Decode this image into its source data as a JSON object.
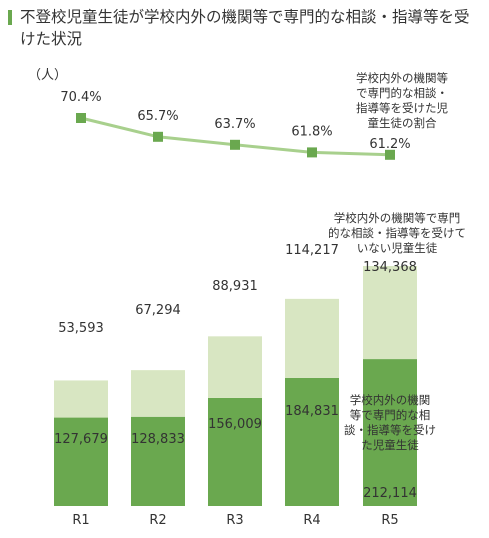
{
  "title": "不登校児童生徒が学校内外の機関等で専門的な相談・指導等を受けた状況",
  "unit": "（人）",
  "colors": {
    "received": "#6aa84f",
    "not_received": "#d8e6c2",
    "rate_line": "#a8d08d",
    "rate_marker": "#6aa84f",
    "accent": "#6aa84f"
  },
  "chart_data": {
    "type": "bar",
    "stacked": true,
    "categories": [
      "R1",
      "R2",
      "R3",
      "R4",
      "R5"
    ],
    "series": [
      {
        "name": "学校内外の機関等で専門的な相談・指導等を受けた児童生徒",
        "values": [
          127679,
          128833,
          156009,
          184831,
          212114
        ]
      },
      {
        "name": "学校内外の機関等で専門的な相談・指導等を受けていない児童生徒",
        "values": [
          53593,
          67294,
          88931,
          114217,
          134368
        ]
      }
    ],
    "line_series": {
      "name": "学校内外の機関等で専門的な相談・指導等を受けた児童生徒の割合",
      "values": [
        70.4,
        65.7,
        63.7,
        61.8,
        61.2
      ],
      "unit": "%"
    },
    "value_labels": {
      "received": [
        "127,679",
        "128,833",
        "156,009",
        "184,831",
        "212,114"
      ],
      "not_received": [
        "53,593",
        "67,294",
        "88,931",
        "114,217",
        "134,368"
      ],
      "rate": [
        "70.4%",
        "65.7%",
        "63.7%",
        "61.8%",
        "61.2%"
      ]
    },
    "annotations": {
      "received": [
        "学校内外の機関",
        "等で専門的な相",
        "談・指導等を受け",
        "た児童生徒"
      ],
      "not_received": [
        "学校内外の機関等で専門",
        "的な相談・指導等を受けて",
        "いない児童生徒"
      ],
      "rate": [
        "学校内外の機関等",
        "で専門的な相談・",
        "指導等を受けた児",
        "童生徒の割合"
      ]
    },
    "xlabel": "",
    "ylabel": "（人）",
    "ylim": [
      0,
      350000
    ],
    "grid": false,
    "legend": "none"
  }
}
